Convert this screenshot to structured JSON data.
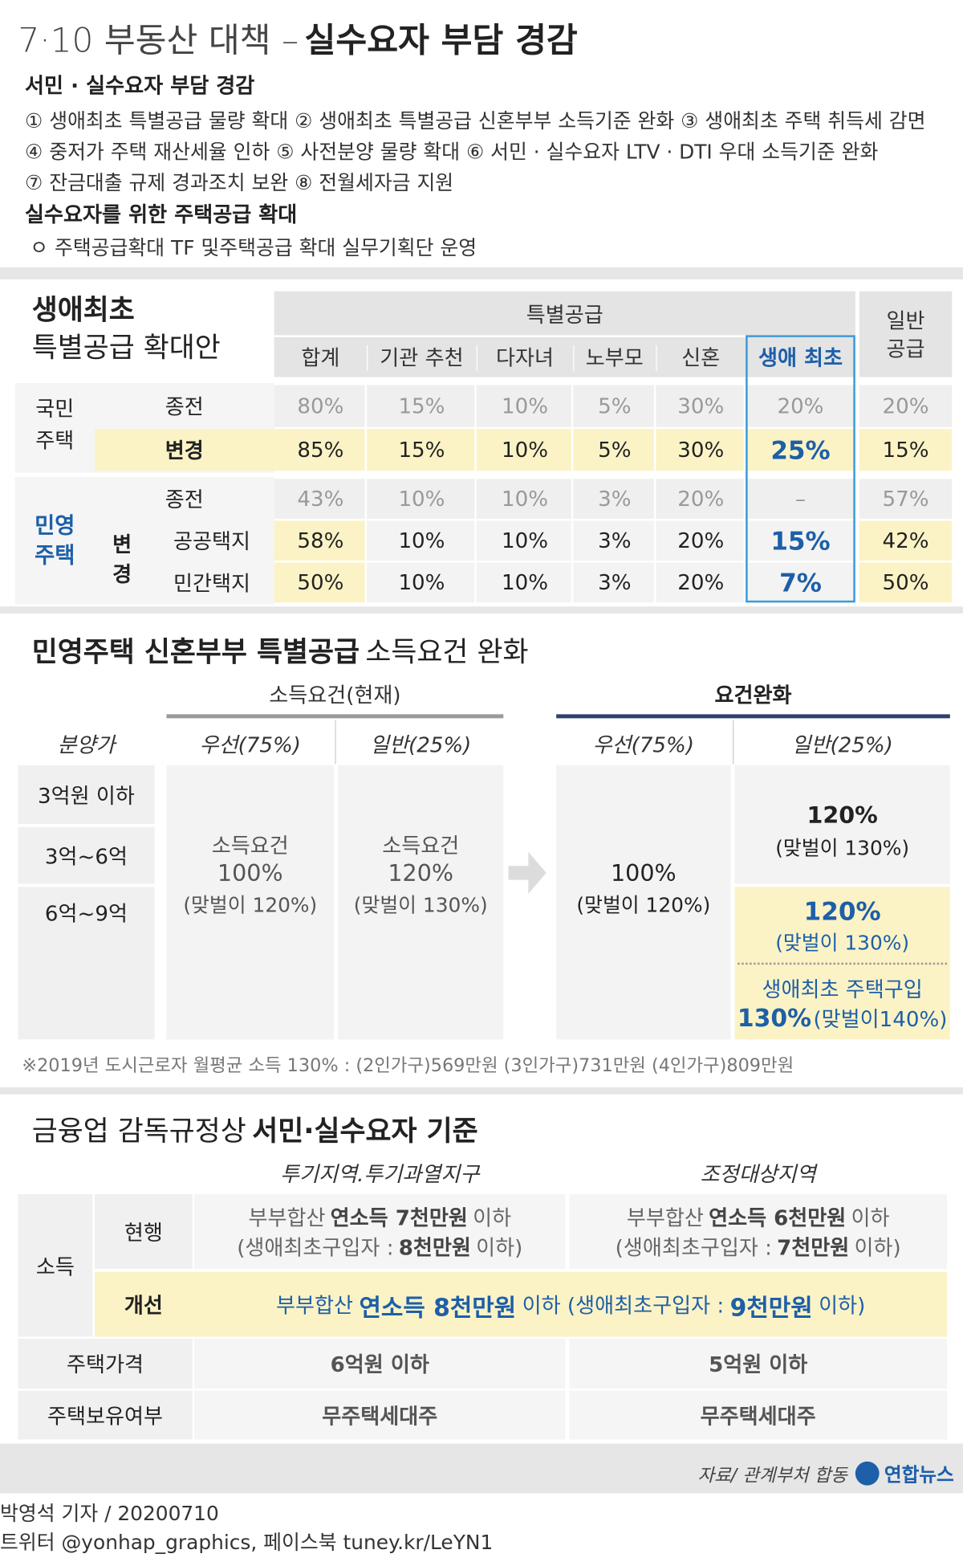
{
  "header": {
    "title_light": "7·10 부동산 대책 –",
    "title_bold": "실수요자 부담 경감"
  },
  "intro": {
    "heading1": "서민 · 실수요자 부담 경감",
    "lines": [
      "① 생애최초 특별공급 물량 확대  ② 생애최초 특별공급 신혼부부 소득기준 완화 ③ 생애최초 주택 취득세 감면",
      "④ 중저가 주택 재산세율 인하 ⑤ 사전분양 물량 확대 ⑥ 서민 · 실수요자 LTV · DTI 우대 소득기준 완화",
      "⑦ 잔금대출 규제 경과조치 보완 ⑧ 전월세자금 지원"
    ],
    "heading2": "실수요자를 위한 주택공급 확대",
    "bullet": "ㅇ 주택공급확대 TF 및주택공급 확대 실무기획단 운영"
  },
  "table1": {
    "title": [
      "생애최초",
      "특별공급 확대안"
    ],
    "group_header": "특별공급",
    "columns": [
      "합계",
      "기관 추천",
      "다자녀",
      "노부모",
      "신혼",
      "생애 최초"
    ],
    "general_header": [
      "일반",
      "공급"
    ],
    "national": {
      "label": [
        "국민",
        "주택"
      ],
      "before": {
        "label": "종전",
        "cells": [
          "80%",
          "15%",
          "10%",
          "5%",
          "30%",
          "20%",
          "20%"
        ]
      },
      "after": {
        "label": "변경",
        "cells": [
          "85%",
          "15%",
          "10%",
          "5%",
          "30%",
          "25%",
          "15%"
        ]
      }
    },
    "private": {
      "label": [
        "민영",
        "주택"
      ],
      "before": {
        "label": "종전",
        "cells": [
          "43%",
          "10%",
          "10%",
          "3%",
          "20%",
          "–",
          "57%"
        ]
      },
      "after_label": [
        "변",
        "경"
      ],
      "public_land": {
        "label": "공공택지",
        "cells": [
          "58%",
          "10%",
          "10%",
          "3%",
          "20%",
          "15%",
          "42%"
        ]
      },
      "private_land": {
        "label": "민간택지",
        "cells": [
          "50%",
          "10%",
          "10%",
          "3%",
          "20%",
          "7%",
          "50%"
        ]
      }
    }
  },
  "section2": {
    "title_bold": "민영주택 신혼부부 특별공급",
    "title_light": "소득요건 완화",
    "current_header": "소득요건(현재)",
    "relaxed_header": "요건완화",
    "columns": [
      "분양가",
      "우선(75%)",
      "일반(25%)",
      "우선(75%)",
      "일반(25%)"
    ],
    "prices": [
      "3억원 이하",
      "3억~6억",
      "6억~9억"
    ],
    "current_priority": [
      "소득요건",
      "100%",
      "(맞벌이 120%)"
    ],
    "current_general": [
      "소득요건",
      "120%",
      "(맞벌이 130%)"
    ],
    "relaxed_priority": [
      "100%",
      "(맞벌이 120%)"
    ],
    "relaxed_general_top": [
      "120%",
      "(맞벌이 130%)"
    ],
    "relaxed_general_bottom": [
      "120%",
      "(맞벌이 130%)",
      "생애최초 주택구입",
      "130%",
      "(맞벌이140%)"
    ],
    "note": "※2019년 도시근로자 월평균 소득 130% : (2인가구)569만원 (3인가구)731만원 (4인가구)809만원"
  },
  "section3": {
    "title_light": "금융업 감독규정상",
    "title_bold": "서민·실수요자 기준",
    "columns": [
      "투기지역.투기과열지구",
      "조정대상지역"
    ],
    "income_label": "소득",
    "current_label": "현행",
    "improved_label": "개선",
    "current_a": [
      [
        "부부합산",
        "연소득 7천만원",
        "이하"
      ],
      [
        "(생애최초구입자 :",
        "8천만원",
        "이하)"
      ]
    ],
    "current_b": [
      [
        "부부합산",
        "연소득 6천만원",
        "이하"
      ],
      [
        "(생애최초구입자 :",
        "7천만원",
        "이하)"
      ]
    ],
    "improved": [
      "부부합산",
      "연소득 8천만원",
      "이하 (생애최초구입자 :",
      "9천만원",
      "이하)"
    ],
    "price_label": "주택가격",
    "price": [
      "6억원 이하",
      "5억원 이하"
    ],
    "owner_label": "주택보유여부",
    "owner": [
      "무주택세대주",
      "무주택세대주"
    ]
  },
  "footer": {
    "source": "자료/ 관계부처 합동",
    "logo": "연합뉴스",
    "credit": "박영석 기자 / 20200710",
    "sns": "트위터 @yonhap_graphics, 페이스북 tuney.kr/LeYN1"
  }
}
